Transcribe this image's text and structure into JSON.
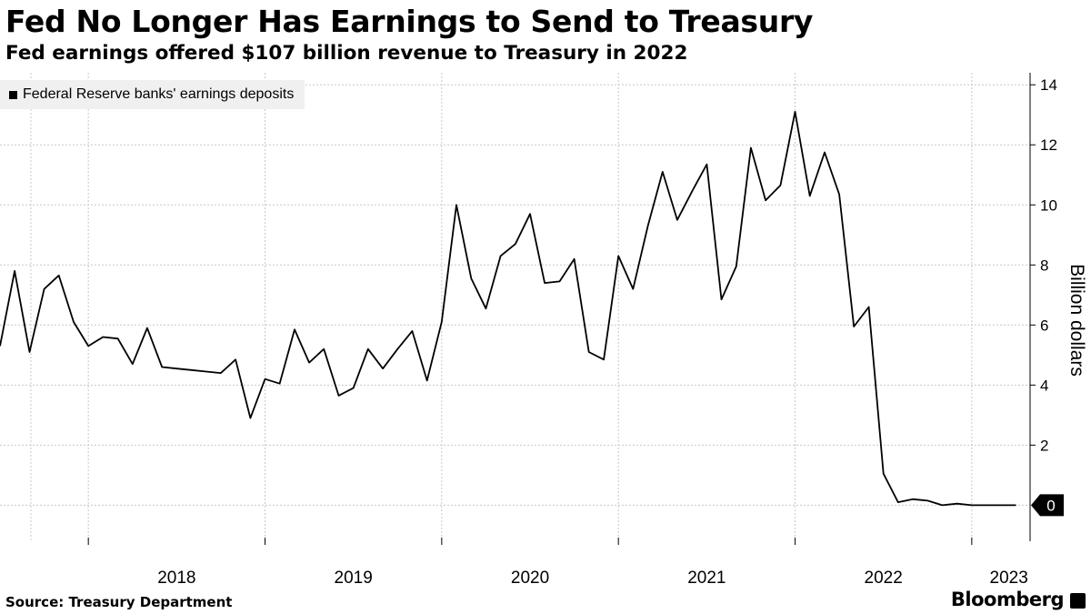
{
  "header": {
    "title": "Fed No Longer Has Earnings to Send to Treasury",
    "subtitle": "Fed earnings offered $107 billion revenue to Treasury in 2022"
  },
  "footer": {
    "source": "Source: Treasury Department",
    "brand": "Bloomberg"
  },
  "colors": {
    "line": "#000000",
    "grid": "#c8c8c8",
    "legend_bg": "#f0f0f0"
  },
  "chart_data": {
    "type": "line",
    "title": "Fed No Longer Has Earnings to Send to Treasury",
    "subtitle": "Fed earnings offered $107 billion revenue to Treasury in 2022",
    "ylabel": "Billion dollars",
    "xlabel": "",
    "ylim": [
      -1.2,
      14.4
    ],
    "yticks": [
      14,
      12,
      10,
      8,
      6,
      4,
      2
    ],
    "xlim": [
      2017.5,
      2023.33
    ],
    "xticks": [
      {
        "label": "2018",
        "value": 2018.5
      },
      {
        "label": "2019",
        "value": 2019.5
      },
      {
        "label": "2020",
        "value": 2020.5
      },
      {
        "label": "2021",
        "value": 2021.5
      },
      {
        "label": "2022",
        "value": 2022.5
      },
      {
        "label": "2023",
        "value": 2023.21
      }
    ],
    "year_gridlines": [
      2018,
      2019,
      2020,
      2021,
      2022,
      2023
    ],
    "legend": {
      "label": "Federal Reserve banks' earnings deposits",
      "position": "top-left"
    },
    "last_value_label": "0",
    "grid": true,
    "series": [
      {
        "name": "Federal Reserve banks' earnings deposits",
        "x": [
          2017.5,
          2017.583,
          2017.667,
          2017.75,
          2017.833,
          2017.917,
          2018.0,
          2018.083,
          2018.167,
          2018.25,
          2018.333,
          2018.417,
          2018.5,
          2018.583,
          2018.667,
          2018.75,
          2018.833,
          2018.917,
          2019.0,
          2019.083,
          2019.167,
          2019.25,
          2019.333,
          2019.417,
          2019.5,
          2019.583,
          2019.667,
          2019.75,
          2019.833,
          2019.917,
          2020.0,
          2020.083,
          2020.167,
          2020.25,
          2020.333,
          2020.417,
          2020.5,
          2020.583,
          2020.667,
          2020.75,
          2020.833,
          2020.917,
          2021.0,
          2021.083,
          2021.167,
          2021.25,
          2021.333,
          2021.417,
          2021.5,
          2021.583,
          2021.667,
          2021.75,
          2021.833,
          2021.917,
          2022.0,
          2022.083,
          2022.167,
          2022.25,
          2022.333,
          2022.417,
          2022.5,
          2022.583,
          2022.667,
          2022.75,
          2022.833,
          2022.917,
          2023.0,
          2023.083,
          2023.167,
          2023.25
        ],
        "values": [
          5.3,
          7.8,
          5.1,
          7.2,
          7.65,
          6.1,
          5.3,
          5.6,
          5.55,
          4.7,
          5.9,
          4.6,
          4.55,
          4.5,
          4.45,
          4.4,
          4.85,
          2.9,
          4.2,
          4.05,
          5.85,
          4.75,
          5.2,
          3.65,
          3.9,
          5.2,
          4.55,
          5.2,
          5.8,
          4.15,
          6.1,
          10.0,
          7.55,
          6.55,
          8.3,
          8.7,
          9.7,
          7.4,
          7.45,
          8.2,
          5.1,
          4.85,
          8.3,
          7.2,
          9.3,
          11.1,
          9.5,
          10.45,
          11.35,
          6.85,
          7.95,
          11.9,
          10.15,
          10.65,
          13.1,
          10.3,
          11.75,
          10.35,
          5.95,
          6.6,
          1.05,
          0.1,
          0.2,
          0.15,
          0.0,
          0.05,
          0.0,
          0.0,
          0.0,
          0.0
        ]
      }
    ]
  }
}
